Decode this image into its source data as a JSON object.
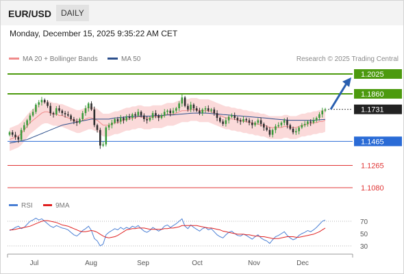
{
  "header": {
    "symbol": "EUR/USD",
    "period": "DAILY"
  },
  "timestamp": "Monday, December 15, 2025 9:35:22 AM CET",
  "legend": {
    "items": [
      {
        "label": "MA 20 + Bollinger Bands",
        "color": "#f08a8a"
      },
      {
        "label": "MA 50",
        "color": "#2c4f8c"
      }
    ],
    "credit": "Research © 2025 Trading Central"
  },
  "price_levels": [
    {
      "label": "1.2025",
      "kind": "resistance-target",
      "color": "#4c9a0e",
      "price": 1.2025
    },
    {
      "label": "1.1860",
      "kind": "resistance",
      "color": "#4c9a0e",
      "price": 1.186
    },
    {
      "label": "1.1731",
      "kind": "last-price",
      "color": "#222222",
      "price": 1.1731
    },
    {
      "label": "1.1465",
      "kind": "pivot",
      "color": "#2a6bd6",
      "price": 1.1465
    },
    {
      "label": "1.1265",
      "kind": "support",
      "color": "#e03434",
      "price": 1.1265
    },
    {
      "label": "1.1080",
      "kind": "support",
      "color": "#e03434",
      "price": 1.108
    }
  ],
  "rsi": {
    "legend": [
      {
        "label": "RSI",
        "color": "#4a7fd4"
      },
      {
        "label": "9MA",
        "color": "#e02020"
      }
    ],
    "levels": [
      "70",
      "50",
      "30"
    ]
  },
  "x_axis": {
    "months": [
      "Jul",
      "Aug",
      "Sep",
      "Oct",
      "Nov",
      "Dec"
    ]
  },
  "chart_data": {
    "type": "candlestick",
    "instrument": "EUR/USD",
    "timeframe": "DAILY",
    "colors": {
      "up": "#3a9a3a",
      "down": "#2d2d2d",
      "bands": "#fbdada",
      "ma20": "#f08a8a",
      "ma50": "#2c4f8c"
    },
    "closes": [
      1.154,
      1.152,
      1.15,
      1.148,
      1.156,
      1.16,
      1.164,
      1.168,
      1.171,
      1.177,
      1.179,
      1.181,
      1.179,
      1.176,
      1.17,
      1.169,
      1.174,
      1.172,
      1.17,
      1.169,
      1.168,
      1.165,
      1.163,
      1.162,
      1.165,
      1.17,
      1.174,
      1.178,
      1.173,
      1.16,
      1.156,
      1.143,
      1.144,
      1.158,
      1.16,
      1.162,
      1.165,
      1.163,
      1.166,
      1.164,
      1.167,
      1.166,
      1.169,
      1.168,
      1.171,
      1.168,
      1.165,
      1.164,
      1.166,
      1.17,
      1.168,
      1.166,
      1.168,
      1.171,
      1.172,
      1.17,
      1.172,
      1.174,
      1.178,
      1.183,
      1.176,
      1.173,
      1.177,
      1.174,
      1.172,
      1.17,
      1.173,
      1.174,
      1.172,
      1.173,
      1.17,
      1.166,
      1.163,
      1.161,
      1.164,
      1.167,
      1.168,
      1.166,
      1.164,
      1.163,
      1.165,
      1.164,
      1.162,
      1.16,
      1.162,
      1.164,
      1.161,
      1.158,
      1.156,
      1.152,
      1.156,
      1.159,
      1.16,
      1.162,
      1.164,
      1.16,
      1.157,
      1.154,
      1.155,
      1.158,
      1.16,
      1.161,
      1.163,
      1.162,
      1.164,
      1.166,
      1.169,
      1.172,
      1.1731
    ],
    "ma20": [
      1.148,
      1.149,
      1.15,
      1.151,
      1.153,
      1.156,
      1.159,
      1.162,
      1.164,
      1.166,
      1.168,
      1.17,
      1.171,
      1.171,
      1.17,
      1.169,
      1.169,
      1.168,
      1.168,
      1.167,
      1.166,
      1.165,
      1.164,
      1.163,
      1.163,
      1.164,
      1.165,
      1.166,
      1.166,
      1.165,
      1.164,
      1.162,
      1.16,
      1.16,
      1.16,
      1.161,
      1.162,
      1.162,
      1.163,
      1.164,
      1.165,
      1.165,
      1.166,
      1.166,
      1.167,
      1.167,
      1.166,
      1.166,
      1.166,
      1.167,
      1.167,
      1.167,
      1.167,
      1.168,
      1.169,
      1.169,
      1.169,
      1.17,
      1.171,
      1.172,
      1.172,
      1.172,
      1.173,
      1.173,
      1.173,
      1.172,
      1.172,
      1.172,
      1.172,
      1.171,
      1.17,
      1.169,
      1.168,
      1.167,
      1.166,
      1.166,
      1.165,
      1.165,
      1.164,
      1.164,
      1.163,
      1.163,
      1.162,
      1.162,
      1.161,
      1.161,
      1.16,
      1.16,
      1.159,
      1.158,
      1.158,
      1.158,
      1.158,
      1.158,
      1.159,
      1.159,
      1.158,
      1.158,
      1.158,
      1.159,
      1.16,
      1.16,
      1.161,
      1.161,
      1.162,
      1.162,
      1.163,
      1.163,
      1.164
    ],
    "ma50": [
      1.145,
      1.1455,
      1.146,
      1.1465,
      1.147,
      1.1475,
      1.148,
      1.149,
      1.15,
      1.151,
      1.152,
      1.153,
      1.154,
      1.155,
      1.156,
      1.157,
      1.158,
      1.159,
      1.16,
      1.1605,
      1.161,
      1.1615,
      1.162,
      1.1625,
      1.163,
      1.1635,
      1.164,
      1.1645,
      1.165,
      1.165,
      1.165,
      1.165,
      1.165,
      1.165,
      1.165,
      1.1655,
      1.166,
      1.166,
      1.1665,
      1.1665,
      1.167,
      1.167,
      1.167,
      1.1672,
      1.1675,
      1.1675,
      1.1675,
      1.1675,
      1.1675,
      1.1678,
      1.168,
      1.168,
      1.168,
      1.1682,
      1.1685,
      1.1685,
      1.1685,
      1.1688,
      1.169,
      1.1692,
      1.1694,
      1.1696,
      1.1698,
      1.17,
      1.17,
      1.17,
      1.17,
      1.17,
      1.1698,
      1.1696,
      1.1694,
      1.1692,
      1.169,
      1.1688,
      1.1686,
      1.1684,
      1.1682,
      1.168,
      1.1678,
      1.1676,
      1.1674,
      1.1672,
      1.167,
      1.1668,
      1.1666,
      1.1664,
      1.1662,
      1.166,
      1.1658,
      1.1655,
      1.1652,
      1.165,
      1.1648,
      1.1646,
      1.1644,
      1.1642,
      1.164,
      1.164,
      1.164,
      1.164,
      1.164,
      1.164,
      1.164,
      1.164,
      1.164,
      1.1642,
      1.1644,
      1.1646,
      1.1648
    ],
    "band_width": 0.0095,
    "projection_target": 1.2025,
    "rsi_values": [
      55,
      57,
      60,
      62,
      58,
      60,
      65,
      70,
      72,
      75,
      72,
      74,
      70,
      66,
      62,
      60,
      63,
      61,
      59,
      58,
      56,
      52,
      48,
      46,
      50,
      55,
      58,
      62,
      55,
      42,
      38,
      30,
      33,
      48,
      52,
      55,
      58,
      56,
      60,
      57,
      60,
      58,
      62,
      60,
      63,
      58,
      54,
      52,
      55,
      60,
      57,
      54,
      57,
      62,
      64,
      60,
      63,
      66,
      70,
      74,
      62,
      58,
      64,
      60,
      57,
      54,
      58,
      60,
      56,
      58,
      53,
      48,
      45,
      43,
      48,
      52,
      54,
      50,
      47,
      46,
      49,
      47,
      44,
      41,
      45,
      48,
      43,
      40,
      38,
      34,
      40,
      45,
      47,
      50,
      53,
      47,
      43,
      40,
      42,
      47,
      50,
      52,
      55,
      53,
      56,
      60,
      65,
      70,
      72
    ],
    "rsi_ma": [
      56,
      56,
      57,
      58,
      59,
      60,
      61,
      62,
      64,
      66,
      68,
      70,
      71,
      71,
      70,
      69,
      68,
      66,
      64,
      63,
      62,
      60,
      58,
      56,
      54,
      53,
      53,
      54,
      55,
      54,
      52,
      49,
      46,
      44,
      43,
      44,
      45,
      47,
      50,
      53,
      56,
      57,
      58,
      58,
      59,
      59,
      59,
      58,
      57,
      57,
      57,
      57,
      57,
      58,
      58,
      59,
      59,
      60,
      61,
      63,
      63,
      63,
      63,
      63,
      63,
      62,
      61,
      60,
      59,
      59,
      58,
      57,
      56,
      54,
      53,
      52,
      51,
      50,
      49,
      49,
      49,
      48,
      48,
      47,
      46,
      46,
      45,
      45,
      44,
      43,
      42,
      42,
      42,
      43,
      44,
      45,
      45,
      45,
      44,
      44,
      45,
      46,
      47,
      48,
      49,
      51,
      53,
      56,
      59
    ],
    "rsi_range": [
      30,
      70
    ],
    "months": [
      "Jul",
      "Aug",
      "Sep",
      "Oct",
      "Nov",
      "Dec"
    ]
  }
}
